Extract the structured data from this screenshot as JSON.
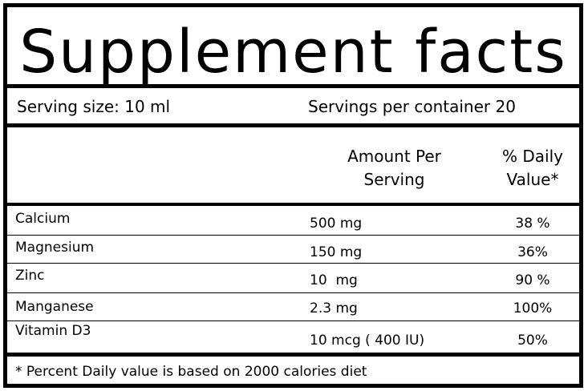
{
  "panel": {
    "title": "Supplement facts",
    "serving_size": "Serving size: 10 ml",
    "servings_per_container": "Servings per container 20"
  },
  "columns": {
    "amount_line1": "Amount Per",
    "amount_line2": "Serving",
    "daily_line1": "% Daily",
    "daily_line2": "Value*"
  },
  "rows": [
    {
      "nutrient": "Calcium",
      "amount": "500 mg",
      "daily_value": "38 %"
    },
    {
      "nutrient": "Magnesium",
      "amount": "150 mg",
      "daily_value": "36%"
    },
    {
      "nutrient": "Zinc",
      "amount": "10  mg",
      "daily_value": "90 %"
    },
    {
      "nutrient": "Manganese",
      "amount": "2.3 mg",
      "daily_value": "100%"
    },
    {
      "nutrient": "Vitamin D3",
      "amount": "10 mcg ( 400 IU)",
      "daily_value": "50%"
    }
  ],
  "footnote": "* Percent Daily value is based on 2000 calories diet"
}
